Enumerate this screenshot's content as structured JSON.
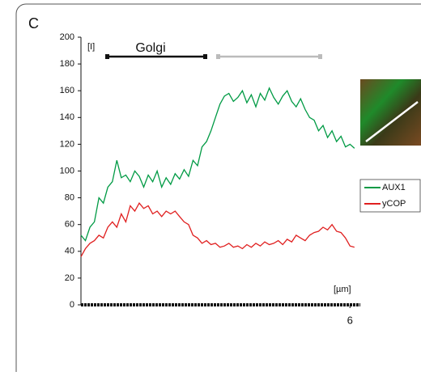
{
  "chart_data": {
    "type": "line",
    "panel_label": "C",
    "annotations": [
      "Golgi"
    ],
    "ylabel": "[I]",
    "xlabel": "[µm]",
    "x": [
      0,
      0.1,
      0.2,
      0.3,
      0.4,
      0.5,
      0.6,
      0.7,
      0.8,
      0.9,
      1.0,
      1.1,
      1.2,
      1.3,
      1.4,
      1.5,
      1.6,
      1.7,
      1.8,
      1.9,
      2.0,
      2.1,
      2.2,
      2.3,
      2.4,
      2.5,
      2.6,
      2.7,
      2.8,
      2.9,
      3.0,
      3.1,
      3.2,
      3.3,
      3.4,
      3.5,
      3.6,
      3.7,
      3.8,
      3.9,
      4.0,
      4.1,
      4.2,
      4.3,
      4.4,
      4.5,
      4.6,
      4.7,
      4.8,
      4.9,
      5.0,
      5.1,
      5.2,
      5.3,
      5.4,
      5.5,
      5.6,
      5.7,
      5.8,
      5.9,
      6.0,
      6.1
    ],
    "series": [
      {
        "name": "AUX1",
        "color": "#009a44",
        "values": [
          52,
          48,
          58,
          62,
          80,
          76,
          88,
          92,
          108,
          95,
          97,
          92,
          100,
          96,
          88,
          97,
          92,
          100,
          88,
          95,
          90,
          98,
          94,
          101,
          96,
          108,
          104,
          118,
          122,
          130,
          140,
          150,
          156,
          158,
          152,
          155,
          160,
          151,
          157,
          148,
          158,
          153,
          162,
          155,
          150,
          156,
          160,
          152,
          148,
          154,
          146,
          140,
          138,
          130,
          134,
          125,
          130,
          122,
          126,
          118,
          120,
          117
        ]
      },
      {
        "name": "yCOP",
        "color": "#e02020",
        "values": [
          36,
          42,
          46,
          48,
          52,
          50,
          58,
          62,
          58,
          68,
          62,
          74,
          70,
          76,
          72,
          74,
          68,
          70,
          66,
          70,
          68,
          70,
          66,
          62,
          60,
          52,
          50,
          46,
          48,
          45,
          46,
          43,
          44,
          46,
          43,
          44,
          42,
          45,
          43,
          46,
          44,
          47,
          45,
          46,
          48,
          45,
          49,
          47,
          52,
          50,
          48,
          52,
          54,
          55,
          58,
          56,
          60,
          55,
          54,
          50,
          44,
          43
        ]
      }
    ],
    "xlim": [
      0,
      6.23
    ],
    "xticks": [
      6
    ],
    "ylim": [
      0,
      200
    ],
    "yticks": [
      0,
      20,
      40,
      60,
      80,
      100,
      120,
      140,
      160,
      180,
      200
    ],
    "legend": "right"
  }
}
